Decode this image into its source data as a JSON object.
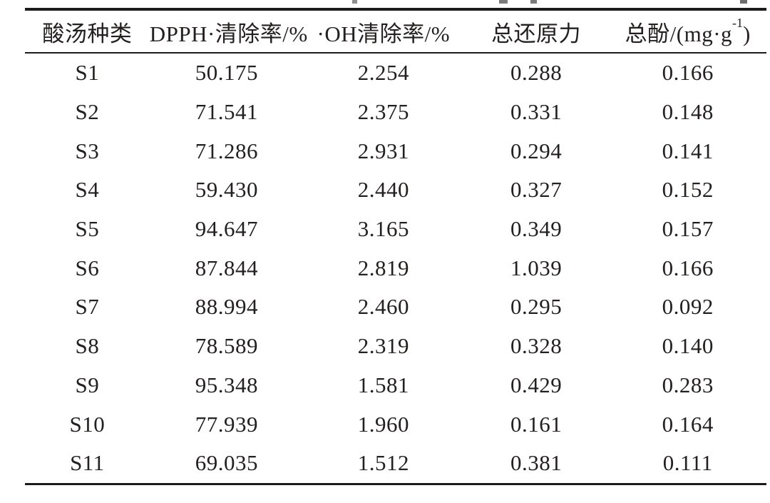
{
  "page": {
    "background": "#ffffff",
    "description_fragments": "cropped remnants of a caption line above the table"
  },
  "colors": {
    "rule": "#1b1b1b",
    "text": "#242020",
    "fragment_gray": "#8f8f8f"
  },
  "table": {
    "style": "three-line academic table",
    "header": {
      "col1": "酸汤种类",
      "col2": "DPPH·清除率/%",
      "col3": "·OH清除率/%",
      "col4": "总还原力",
      "col5_prefix": "总酚/(mg·g",
      "col5_sup": "-1",
      "col5_suffix": ")"
    },
    "column_keys": [
      "type",
      "dpph",
      "oh",
      "reducing",
      "phenol"
    ],
    "rows": [
      {
        "type": "S1",
        "dpph": "50.175",
        "oh": "2.254",
        "reducing": "0.288",
        "phenol": "0.166"
      },
      {
        "type": "S2",
        "dpph": "71.541",
        "oh": "2.375",
        "reducing": "0.331",
        "phenol": "0.148"
      },
      {
        "type": "S3",
        "dpph": "71.286",
        "oh": "2.931",
        "reducing": "0.294",
        "phenol": "0.141"
      },
      {
        "type": "S4",
        "dpph": "59.430",
        "oh": "2.440",
        "reducing": "0.327",
        "phenol": "0.152"
      },
      {
        "type": "S5",
        "dpph": "94.647",
        "oh": "3.165",
        "reducing": "0.349",
        "phenol": "0.157"
      },
      {
        "type": "S6",
        "dpph": "87.844",
        "oh": "2.819",
        "reducing": "1.039",
        "phenol": "0.166"
      },
      {
        "type": "S7",
        "dpph": "88.994",
        "oh": "2.460",
        "reducing": "0.295",
        "phenol": "0.092"
      },
      {
        "type": "S8",
        "dpph": "78.589",
        "oh": "2.319",
        "reducing": "0.328",
        "phenol": "0.140"
      },
      {
        "type": "S9",
        "dpph": "95.348",
        "oh": "1.581",
        "reducing": "0.429",
        "phenol": "0.283"
      },
      {
        "type": "S10",
        "dpph": "77.939",
        "oh": "1.960",
        "reducing": "0.161",
        "phenol": "0.164"
      },
      {
        "type": "S11",
        "dpph": "69.035",
        "oh": "1.512",
        "reducing": "0.381",
        "phenol": "0.111"
      }
    ]
  },
  "chart_data": {
    "type": "table",
    "title": "",
    "categories": [
      "S1",
      "S2",
      "S3",
      "S4",
      "S5",
      "S6",
      "S7",
      "S8",
      "S9",
      "S10",
      "S11"
    ],
    "series": [
      {
        "name": "DPPH·清除率/%",
        "values": [
          50.175,
          71.541,
          71.286,
          59.43,
          94.647,
          87.844,
          88.994,
          78.589,
          95.348,
          77.939,
          69.035
        ]
      },
      {
        "name": "·OH清除率/%",
        "values": [
          2.254,
          2.375,
          2.931,
          2.44,
          3.165,
          2.819,
          2.46,
          2.319,
          1.581,
          1.96,
          1.512
        ]
      },
      {
        "name": "总还原力",
        "values": [
          0.288,
          0.331,
          0.294,
          0.327,
          0.349,
          1.039,
          0.295,
          0.328,
          0.429,
          0.161,
          0.381
        ]
      },
      {
        "name": "总酚/(mg·g-1)",
        "values": [
          0.166,
          0.148,
          0.141,
          0.152,
          0.157,
          0.166,
          0.092,
          0.14,
          0.283,
          0.164,
          0.111
        ]
      }
    ]
  }
}
